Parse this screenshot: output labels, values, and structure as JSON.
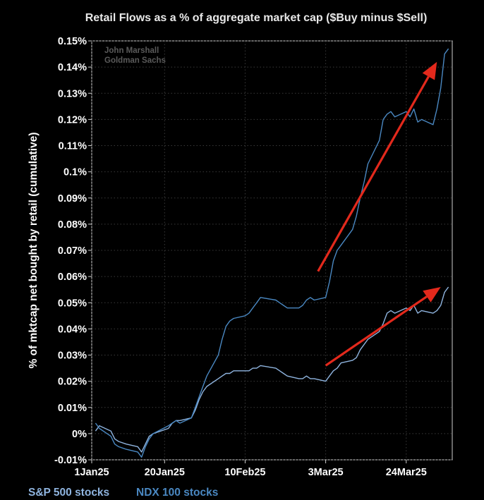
{
  "chart_data": {
    "type": "line",
    "title": "Retail Flows as a % of aggregate market cap ($Buy minus $Sell)",
    "ylabel": "% of mktcap net bought by retail (cumulative)",
    "xlabel": "",
    "watermark": [
      "John Marshall",
      "Goldman Sachs"
    ],
    "x_ticks": [
      "1Jan25",
      "20Jan25",
      "10Feb25",
      "3Mar25",
      "24Mar25"
    ],
    "x_tick_days": [
      0,
      19,
      40,
      61,
      82
    ],
    "y_ticks": [
      "0.15%",
      "0.14%",
      "0.13%",
      "0.12%",
      "0.11%",
      "0.1%",
      "0.09%",
      "0.08%",
      "0.07%",
      "0.06%",
      "0.05%",
      "0.04%",
      "0.03%",
      "0.02%",
      "0.01%",
      "0%",
      "-0.01%"
    ],
    "ylim": [
      -0.01,
      0.15
    ],
    "grid": true,
    "legend_position": "bottom-left",
    "series": [
      {
        "name": "S&P 500 stocks",
        "color": "#8fb4df",
        "x": [
          "2025-01-02",
          "2025-01-03",
          "2025-01-06",
          "2025-01-07",
          "2025-01-08",
          "2025-01-10",
          "2025-01-13",
          "2025-01-14",
          "2025-01-15",
          "2025-01-16",
          "2025-01-17",
          "2025-01-21",
          "2025-01-22",
          "2025-01-23",
          "2025-01-24",
          "2025-01-27",
          "2025-01-28",
          "2025-01-29",
          "2025-01-30",
          "2025-01-31",
          "2025-02-03",
          "2025-02-04",
          "2025-02-05",
          "2025-02-06",
          "2025-02-07",
          "2025-02-10",
          "2025-02-11",
          "2025-02-12",
          "2025-02-13",
          "2025-02-14",
          "2025-02-18",
          "2025-02-19",
          "2025-02-20",
          "2025-02-21",
          "2025-02-24",
          "2025-02-25",
          "2025-02-26",
          "2025-02-27",
          "2025-02-28",
          "2025-03-03",
          "2025-03-04",
          "2025-03-05",
          "2025-03-06",
          "2025-03-07",
          "2025-03-10",
          "2025-03-11",
          "2025-03-12",
          "2025-03-13",
          "2025-03-14",
          "2025-03-17",
          "2025-03-18",
          "2025-03-19",
          "2025-03-20",
          "2025-03-21",
          "2025-03-24",
          "2025-03-25",
          "2025-03-26",
          "2025-03-27",
          "2025-03-28",
          "2025-03-31",
          "2025-04-01",
          "2025-04-02",
          "2025-04-03",
          "2025-04-04"
        ],
        "y": [
          0.001,
          0.003,
          0.001,
          -0.002,
          -0.003,
          -0.004,
          -0.005,
          -0.007,
          -0.004,
          -0.001,
          0.0,
          0.002,
          0.004,
          0.005,
          0.005,
          0.006,
          0.009,
          0.013,
          0.016,
          0.018,
          0.021,
          0.022,
          0.023,
          0.023,
          0.024,
          0.024,
          0.024,
          0.025,
          0.025,
          0.026,
          0.025,
          0.024,
          0.023,
          0.022,
          0.021,
          0.021,
          0.022,
          0.021,
          0.021,
          0.02,
          0.022,
          0.024,
          0.025,
          0.027,
          0.028,
          0.029,
          0.032,
          0.034,
          0.036,
          0.039,
          0.042,
          0.046,
          0.047,
          0.046,
          0.048,
          0.047,
          0.049,
          0.046,
          0.047,
          0.046,
          0.047,
          0.049,
          0.054,
          0.056
        ]
      },
      {
        "name": "NDX 100 stocks",
        "color": "#4a88c2",
        "x": [
          "2025-01-02",
          "2025-01-03",
          "2025-01-06",
          "2025-01-07",
          "2025-01-08",
          "2025-01-10",
          "2025-01-13",
          "2025-01-14",
          "2025-01-15",
          "2025-01-16",
          "2025-01-17",
          "2025-01-21",
          "2025-01-22",
          "2025-01-23",
          "2025-01-24",
          "2025-01-27",
          "2025-01-28",
          "2025-01-29",
          "2025-01-30",
          "2025-01-31",
          "2025-02-03",
          "2025-02-04",
          "2025-02-05",
          "2025-02-06",
          "2025-02-07",
          "2025-02-10",
          "2025-02-11",
          "2025-02-12",
          "2025-02-13",
          "2025-02-14",
          "2025-02-18",
          "2025-02-19",
          "2025-02-20",
          "2025-02-21",
          "2025-02-24",
          "2025-02-25",
          "2025-02-26",
          "2025-02-27",
          "2025-02-28",
          "2025-03-03",
          "2025-03-04",
          "2025-03-05",
          "2025-03-06",
          "2025-03-07",
          "2025-03-10",
          "2025-03-11",
          "2025-03-12",
          "2025-03-13",
          "2025-03-14",
          "2025-03-17",
          "2025-03-18",
          "2025-03-19",
          "2025-03-20",
          "2025-03-21",
          "2025-03-24",
          "2025-03-25",
          "2025-03-26",
          "2025-03-27",
          "2025-03-28",
          "2025-03-31",
          "2025-04-01",
          "2025-04-02",
          "2025-04-03",
          "2025-04-04"
        ],
        "y": [
          0.004,
          0.002,
          -0.001,
          -0.004,
          -0.005,
          -0.006,
          -0.007,
          -0.009,
          -0.005,
          -0.002,
          0.0,
          0.003,
          0.004,
          0.005,
          0.004,
          0.006,
          0.01,
          0.014,
          0.018,
          0.022,
          0.03,
          0.036,
          0.041,
          0.043,
          0.044,
          0.045,
          0.046,
          0.048,
          0.05,
          0.052,
          0.051,
          0.05,
          0.049,
          0.048,
          0.048,
          0.049,
          0.051,
          0.052,
          0.051,
          0.052,
          0.058,
          0.066,
          0.07,
          0.072,
          0.078,
          0.083,
          0.09,
          0.096,
          0.103,
          0.112,
          0.12,
          0.122,
          0.123,
          0.121,
          0.123,
          0.121,
          0.124,
          0.119,
          0.12,
          0.118,
          0.124,
          0.132,
          0.145,
          0.147
        ]
      }
    ],
    "arrows": [
      {
        "from": [
          "2025-03-01",
          0.062
        ],
        "to": [
          "2025-04-01",
          0.142
        ],
        "color": "#e3291c"
      },
      {
        "from": [
          "2025-03-03",
          0.026
        ],
        "to": [
          "2025-04-02",
          0.056
        ],
        "color": "#e3291c"
      }
    ]
  }
}
